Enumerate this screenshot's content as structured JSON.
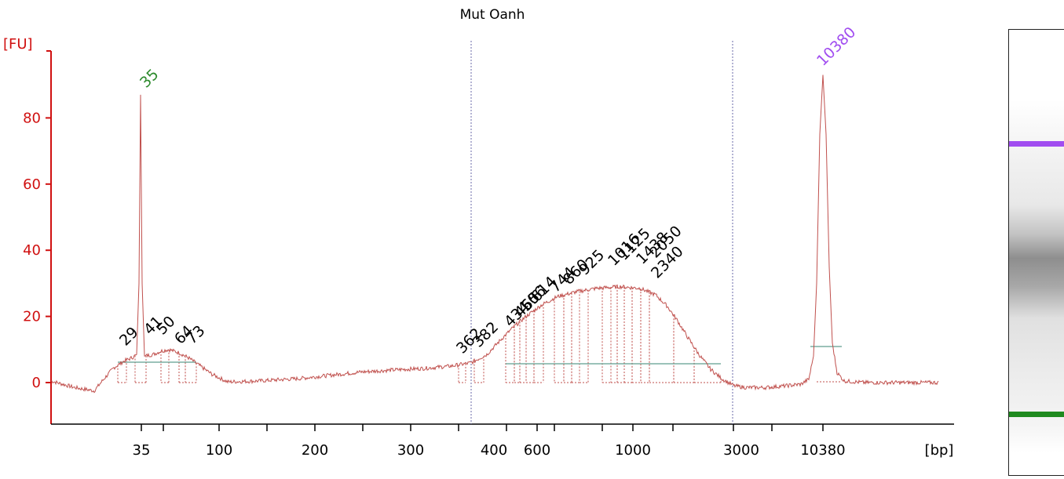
{
  "chart_data": {
    "type": "line",
    "title": "Mut Oanh",
    "ylabel": "[FU]",
    "xlabel": "[bp]",
    "ylim": [
      -13,
      104
    ],
    "y_ticks": [
      "0",
      "20",
      "40",
      "60",
      "80"
    ],
    "x_tick_labels": [
      "35",
      "100",
      "200",
      "300",
      "400",
      "600",
      "1000",
      "3000",
      "10380"
    ],
    "series": [
      {
        "color": "#c0504d",
        "x": [
          "<35",
          "35",
          "41",
          "50",
          "64",
          "73",
          "100",
          "200",
          "300",
          "362",
          "382",
          "434",
          "465",
          "506",
          "614",
          "744",
          "860",
          "925",
          "1016",
          "1125",
          "1438",
          "2050",
          "2340",
          "3000",
          "10380",
          ">10380"
        ],
        "values": [
          -1,
          87,
          10,
          10,
          9,
          6,
          0,
          1.5,
          3.5,
          5,
          6,
          15,
          19,
          23,
          27,
          28.5,
          29,
          29,
          28.5,
          27,
          24,
          17,
          8,
          -1,
          93,
          0
        ]
      }
    ],
    "peak_labels": [
      {
        "text": "35",
        "color": "#2e8b2e"
      },
      {
        "text": "10380",
        "color": "#a14df0"
      },
      {
        "text": "29",
        "color": "#000000"
      },
      {
        "text": "41",
        "color": "#000000"
      },
      {
        "text": "50",
        "color": "#000000"
      },
      {
        "text": "64",
        "color": "#000000"
      },
      {
        "text": "73",
        "color": "#000000"
      },
      {
        "text": "362",
        "color": "#000000"
      },
      {
        "text": "382",
        "color": "#000000"
      },
      {
        "text": "434",
        "color": "#000000"
      },
      {
        "text": "465",
        "color": "#000000"
      },
      {
        "text": "506",
        "color": "#000000"
      },
      {
        "text": "614",
        "color": "#000000"
      },
      {
        "text": "744",
        "color": "#000000"
      },
      {
        "text": "860",
        "color": "#000000"
      },
      {
        "text": "925",
        "color": "#000000"
      },
      {
        "text": "1016",
        "color": "#000000"
      },
      {
        "text": "1125",
        "color": "#000000"
      },
      {
        "text": "1438",
        "color": "#000000"
      },
      {
        "text": "2050",
        "color": "#000000"
      },
      {
        "text": "2340",
        "color": "#000000"
      }
    ],
    "grid": false,
    "colors": {
      "axis": "#d01010",
      "trace": "#c0504d",
      "baseline": "#5f9e8f",
      "region_marker": "#6a6aa8",
      "lower_marker": "#2e8b2e",
      "upper_marker": "#a14df0"
    }
  },
  "gel": {
    "upper_marker_color": "#a14df0",
    "lower_marker_color": "#1f8a1f"
  }
}
